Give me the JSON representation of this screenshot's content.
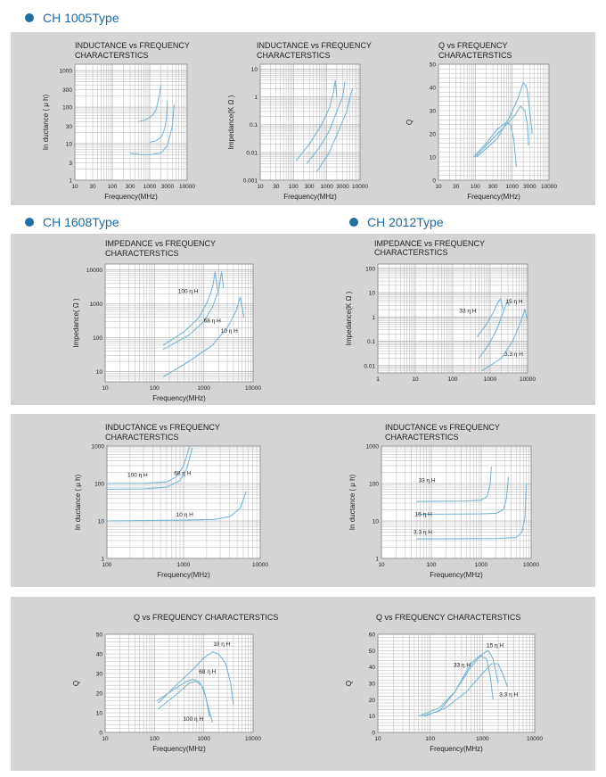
{
  "sections": {
    "ch1005": "CH 1005Type",
    "ch1608": "CH 1608Type",
    "ch2012": "CH 2012Type"
  },
  "colors": {
    "curve": "#7ab6d3",
    "grid": "#b9b9b9",
    "plot_bg": "#ffffff",
    "panel_bg": "#d4d4d4",
    "accent": "#1f6fa3"
  },
  "chart_data": [
    {
      "id": "c1005_ind",
      "type": "line",
      "title": [
        "INDUCTANCE vs FREQUENCY",
        "CHARACTERSTICS"
      ],
      "xlabel": "Frequency(MHz)",
      "ylabel": "In ductance ( μ h)",
      "xscale": "log",
      "yscale": "log",
      "xlim": [
        10,
        10000
      ],
      "ylim": [
        1,
        1500
      ],
      "xticks": [
        10,
        30,
        100,
        300,
        1000,
        3000,
        10000
      ],
      "xtick_labels": [
        "10",
        "30",
        "100",
        "300",
        "1000",
        "3000",
        "10000"
      ],
      "yticks": [
        1,
        3,
        10,
        30,
        100,
        300,
        1000
      ],
      "ytick_labels": [
        "1",
        "3",
        "10",
        "30",
        "100",
        "300",
        "1000"
      ],
      "series": [
        {
          "x": [
            500,
            800,
            1200,
            1500,
            1800,
            2000
          ],
          "y": [
            40,
            45,
            60,
            90,
            200,
            400
          ]
        },
        {
          "x": [
            1000,
            1500,
            2000,
            2500,
            2800,
            3000
          ],
          "y": [
            11,
            12,
            15,
            25,
            50,
            150
          ]
        },
        {
          "x": [
            300,
            600,
            1000,
            2000,
            3000,
            4000,
            4500
          ],
          "y": [
            5.5,
            5,
            5,
            5.5,
            9,
            30,
            120
          ]
        }
      ],
      "annotations": []
    },
    {
      "id": "c1005_imp",
      "type": "line",
      "title": [
        "INDUCTANCE vs FREQUENCY",
        "CHARACTERSTICS"
      ],
      "xlabel": "Frequency(MHz)",
      "ylabel": "Impedance(K Ω )",
      "xscale": "log",
      "yscale": "log",
      "xlim": [
        10,
        10000
      ],
      "ylim": [
        0.001,
        15
      ],
      "xticks": [
        10,
        30,
        100,
        300,
        1000,
        3000,
        10000
      ],
      "xtick_labels": [
        "10",
        "30",
        "100",
        "300",
        "1000",
        "3000",
        "10000"
      ],
      "yticks": [
        0.001,
        0.01,
        0.1,
        1,
        10
      ],
      "ytick_labels": [
        "0.001",
        "0.01",
        "0.1",
        "1",
        "10"
      ],
      "series": [
        {
          "x": [
            120,
            300,
            700,
            1200,
            1600,
            1800,
            2000
          ],
          "y": [
            0.005,
            0.02,
            0.1,
            0.4,
            1.5,
            4,
            1
          ]
        },
        {
          "x": [
            250,
            600,
            1200,
            2000,
            3000,
            3500
          ],
          "y": [
            0.004,
            0.015,
            0.06,
            0.3,
            1,
            3.5
          ]
        },
        {
          "x": [
            500,
            1200,
            2500,
            4000,
            5000,
            6000
          ],
          "y": [
            0.002,
            0.01,
            0.08,
            0.3,
            1,
            2
          ]
        }
      ],
      "annotations": []
    },
    {
      "id": "c1005_q",
      "type": "line",
      "title": [
        "Q vs FREQUENCY",
        "CHARACTERSTICS"
      ],
      "xlabel": "Frequency(MHz)",
      "ylabel": "Q",
      "xscale": "log",
      "yscale": "linear",
      "xlim": [
        10,
        10000
      ],
      "ylim": [
        0,
        50
      ],
      "xticks": [
        10,
        30,
        100,
        300,
        1000,
        3000,
        10000
      ],
      "xtick_labels": [
        "10",
        "30",
        "100",
        "300",
        "1000",
        "3000",
        "10000"
      ],
      "yticks": [
        0,
        10,
        20,
        30,
        40,
        50
      ],
      "ytick_labels": [
        "0",
        "10",
        "20",
        "30",
        "40",
        "50"
      ],
      "series": [
        {
          "x": [
            90,
            200,
            400,
            700,
            900,
            1100,
            1300
          ],
          "y": [
            10,
            16,
            22,
            25,
            24,
            18,
            6
          ]
        },
        {
          "x": [
            100,
            300,
            700,
            1200,
            1700,
            2200,
            2600,
            2800
          ],
          "y": [
            10,
            18,
            24,
            28,
            32,
            30,
            24,
            15
          ]
        },
        {
          "x": [
            110,
            400,
            900,
            1500,
            2000,
            2500,
            3000,
            3500
          ],
          "y": [
            10,
            18,
            28,
            36,
            42,
            40,
            30,
            20
          ]
        }
      ],
      "annotations": []
    },
    {
      "id": "c1608_imp",
      "type": "line",
      "title": [
        "IMPEDANCE vs FREQUENCY",
        "CHARACTERSTICS"
      ],
      "xlabel": "Frequency(MHz)",
      "ylabel": "Impedance( Ω )",
      "xscale": "log",
      "yscale": "log",
      "xlim": [
        10,
        10000
      ],
      "ylim": [
        5,
        15000
      ],
      "xticks": [
        10,
        100,
        1000,
        10000
      ],
      "xtick_labels": [
        "10",
        "100",
        "1000",
        "10000"
      ],
      "yticks": [
        10,
        100,
        1000,
        10000
      ],
      "ytick_labels": [
        "10",
        "100",
        "1000",
        "10000"
      ],
      "series": [
        {
          "x": [
            150,
            400,
            800,
            1200,
            1500,
            1700,
            1900
          ],
          "y": [
            60,
            150,
            400,
            1200,
            3000,
            9000,
            2500
          ]
        },
        {
          "x": [
            150,
            500,
            1000,
            1500,
            2000,
            2300,
            2500
          ],
          "y": [
            45,
            120,
            300,
            800,
            2500,
            9000,
            3000
          ]
        },
        {
          "x": [
            150,
            500,
            1500,
            3000,
            4500,
            5500,
            6500
          ],
          "y": [
            7,
            20,
            60,
            200,
            600,
            1600,
            400
          ]
        }
      ],
      "annotations": [
        {
          "text": "100 η H",
          "x": 300,
          "y": 2100
        },
        {
          "text": "68 η H",
          "x": 1000,
          "y": 280
        },
        {
          "text": "10 η H",
          "x": 2200,
          "y": 140
        }
      ]
    },
    {
      "id": "c1608_ind",
      "type": "line",
      "title": [
        "INDUCTANCE vs FREQUENCY",
        "CHARACTERSTICS"
      ],
      "xlabel": "Frequency(MHz)",
      "ylabel": "In ductance ( μ h)",
      "xscale": "log",
      "yscale": "log",
      "xlim": [
        100,
        10000
      ],
      "ylim": [
        1,
        1000
      ],
      "xticks": [
        100,
        1000,
        10000
      ],
      "xtick_labels": [
        "100",
        "1000",
        "10000"
      ],
      "yticks": [
        1,
        10,
        100,
        1000
      ],
      "ytick_labels": [
        "1",
        "10",
        "100",
        "1000"
      ],
      "series": [
        {
          "x": [
            100,
            300,
            600,
            800,
            1000,
            1200
          ],
          "y": [
            100,
            101,
            110,
            150,
            300,
            1000
          ]
        },
        {
          "x": [
            100,
            300,
            600,
            900,
            1100,
            1300
          ],
          "y": [
            70,
            72,
            80,
            120,
            250,
            900
          ]
        },
        {
          "x": [
            100,
            1000,
            2500,
            4000,
            5500,
            6500
          ],
          "y": [
            10,
            10.5,
            11,
            13,
            22,
            60
          ]
        }
      ],
      "annotations": [
        {
          "text": "100 η H",
          "x": 185,
          "y": 150
        },
        {
          "text": "68 η H",
          "x": 750,
          "y": 170
        },
        {
          "text": "10 η H",
          "x": 800,
          "y": 13
        }
      ]
    },
    {
      "id": "c1608_q",
      "type": "line",
      "title": [
        "Q vs FREQUENCY CHARACTERSTICS"
      ],
      "xlabel": "Frequency(MHz)",
      "ylabel": "Q",
      "xscale": "log",
      "yscale": "linear",
      "xlim": [
        10,
        10000
      ],
      "ylim": [
        0,
        50
      ],
      "xticks": [
        10,
        100,
        1000,
        10000
      ],
      "xtick_labels": [
        "10",
        "100",
        "1000",
        "10000"
      ],
      "yticks": [
        0,
        10,
        20,
        30,
        40,
        50
      ],
      "ytick_labels": [
        "0",
        "10",
        "20",
        "30",
        "40",
        "50"
      ],
      "series": [
        {
          "x": [
            120,
            300,
            600,
            1000,
            1500,
            2000,
            2800,
            3500,
            4000
          ],
          "y": [
            15,
            25,
            32,
            38,
            41,
            40,
            35,
            25,
            14
          ]
        },
        {
          "x": [
            120,
            300,
            500,
            700,
            900,
            1100,
            1300
          ],
          "y": [
            12,
            20,
            25,
            26,
            24,
            18,
            8
          ]
        },
        {
          "x": [
            110,
            250,
            450,
            600,
            800,
            1000,
            1200,
            1500
          ],
          "y": [
            16,
            22,
            26,
            27,
            26,
            22,
            14,
            5
          ]
        }
      ],
      "annotations": [
        {
          "text": "10 η H",
          "x": 1550,
          "y": 44
        },
        {
          "text": "68 η H",
          "x": 800,
          "y": 30
        },
        {
          "text": "100 η H",
          "x": 380,
          "y": 6
        }
      ]
    },
    {
      "id": "c2012_imp",
      "type": "line",
      "title": [
        "IMPEDANCE vs FREQUENCY",
        "CHARACTERSTICS"
      ],
      "xlabel": "",
      "ylabel": "Impedance(K Ω )",
      "xscale": "log",
      "yscale": "log",
      "xlim": [
        1,
        10000
      ],
      "ylim": [
        0.005,
        150
      ],
      "xticks": [
        1,
        10,
        100,
        1000,
        10000
      ],
      "xtick_labels": [
        "1",
        "10",
        "100",
        "1000",
        "10000"
      ],
      "yticks": [
        0.01,
        0.1,
        1,
        10,
        100
      ],
      "ytick_labels": [
        "0.01",
        "0.1",
        "1",
        "10",
        "100"
      ],
      "series": [
        {
          "x": [
            450,
            800,
            1200,
            1600,
            1900,
            2200
          ],
          "y": [
            0.15,
            0.5,
            1.5,
            4,
            5.5,
            2
          ]
        },
        {
          "x": [
            500,
            900,
            1500,
            2200,
            2800,
            3300
          ],
          "y": [
            0.02,
            0.07,
            0.3,
            1.5,
            4,
            3
          ]
        },
        {
          "x": [
            600,
            2000,
            4000,
            6500,
            8500,
            10000
          ],
          "y": [
            0.006,
            0.02,
            0.1,
            0.6,
            2,
            0.7
          ]
        }
      ],
      "annotations": [
        {
          "text": "33 η H",
          "x": 150,
          "y": 1.5
        },
        {
          "text": "15 η H",
          "x": 2600,
          "y": 3.6
        },
        {
          "text": "3.3 η H",
          "x": 2400,
          "y": 0.025
        }
      ]
    },
    {
      "id": "c2012_ind",
      "type": "line",
      "title": [
        "INDUCTANCE vs FREQUENCY",
        "CHARACTERSTICS"
      ],
      "xlabel": "Frequency(MHz)",
      "ylabel": "In ductance ( μ h)",
      "xscale": "log",
      "yscale": "log",
      "xlim": [
        10,
        10000
      ],
      "ylim": [
        1,
        1000
      ],
      "xticks": [
        10,
        100,
        1000,
        10000
      ],
      "xtick_labels": [
        "10",
        "100",
        "1000",
        "10000"
      ],
      "yticks": [
        1,
        10,
        100,
        1000
      ],
      "ytick_labels": [
        "1",
        "10",
        "100",
        "1000"
      ],
      "series": [
        {
          "x": [
            50,
            500,
            1000,
            1300,
            1500,
            1600
          ],
          "y": [
            33,
            34,
            36,
            45,
            90,
            280
          ]
        },
        {
          "x": [
            50,
            1000,
            2000,
            2800,
            3200,
            3500
          ],
          "y": [
            15,
            15.5,
            16,
            20,
            40,
            150
          ]
        },
        {
          "x": [
            50,
            2000,
            5000,
            6500,
            7500,
            8000
          ],
          "y": [
            3.3,
            3.4,
            3.6,
            5,
            12,
            100
          ]
        }
      ],
      "annotations": [
        {
          "text": "33 η H",
          "x": 55,
          "y": 110
        },
        {
          "text": "15 η H",
          "x": 47,
          "y": 13.5
        },
        {
          "text": "3.3 η H",
          "x": 44,
          "y": 4.5
        }
      ]
    },
    {
      "id": "c2012_q",
      "type": "line",
      "title": [
        "Q vs FREQUENCY CHARACTERSTICS"
      ],
      "xlabel": "Frequency(MHz)",
      "ylabel": "Q",
      "xscale": "log",
      "yscale": "linear",
      "xlim": [
        10,
        10000
      ],
      "ylim": [
        0,
        60
      ],
      "xticks": [
        10,
        100,
        1000,
        10000
      ],
      "xtick_labels": [
        "10",
        "100",
        "1000",
        "10000"
      ],
      "yticks": [
        0,
        10,
        20,
        30,
        40,
        50,
        60
      ],
      "ytick_labels": [
        "0",
        "10",
        "20",
        "30",
        "40",
        "50",
        "60"
      ],
      "series": [
        {
          "x": [
            70,
            150,
            300,
            600,
            900,
            1200,
            1400,
            1600
          ],
          "y": [
            10,
            13,
            25,
            42,
            47,
            45,
            35,
            20
          ]
        },
        {
          "x": [
            60,
            150,
            300,
            600,
            1000,
            1300,
            1600,
            2000
          ],
          "y": [
            10,
            15,
            25,
            40,
            48,
            50,
            45,
            30
          ]
        },
        {
          "x": [
            80,
            200,
            500,
            1000,
            1500,
            2000,
            2500,
            3000
          ],
          "y": [
            10,
            15,
            25,
            36,
            42,
            42,
            35,
            28
          ]
        }
      ],
      "annotations": [
        {
          "text": "15 η H",
          "x": 1200,
          "y": 52
        },
        {
          "text": "33 η H",
          "x": 280,
          "y": 40
        },
        {
          "text": "3.3 η H",
          "x": 2100,
          "y": 22
        }
      ]
    }
  ]
}
